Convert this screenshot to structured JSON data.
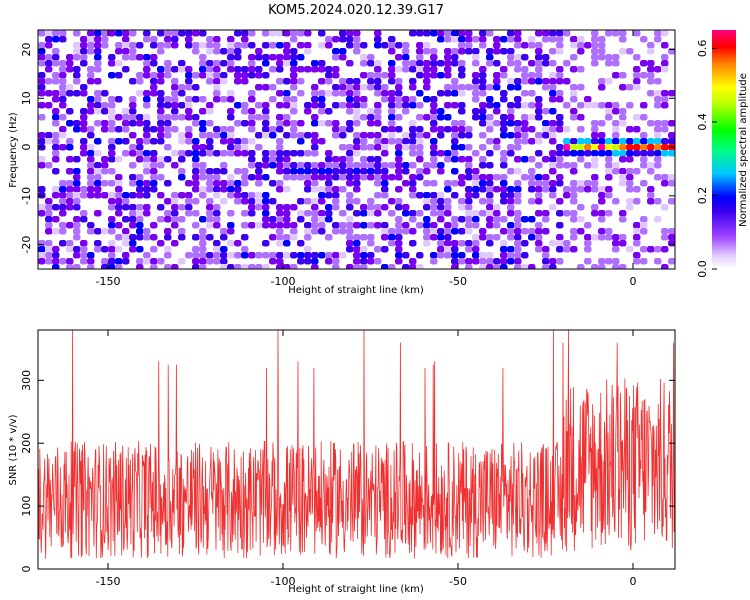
{
  "title": "KOM5.2024.020.12.39.G17",
  "colors": {
    "snr_line": "#f03030",
    "heatmap_palette": [
      "#ffffff",
      "#e0c8ff",
      "#b070ff",
      "#7a00f0",
      "#3b00f0",
      "#0000ff",
      "#00c8ff",
      "#00ffa0",
      "#00ff00",
      "#c8ff00",
      "#ffff00",
      "#ff8000",
      "#ff0000",
      "#ff00a0"
    ]
  },
  "chart_data": [
    {
      "type": "heatmap",
      "xlabel": "Height of straight line (km)",
      "ylabel": "Frequency (Hz)",
      "xlim": [
        -170,
        12
      ],
      "ylim": [
        -25,
        24
      ],
      "xticks": [
        -150,
        -100,
        -50,
        0
      ],
      "yticks": [
        -20,
        -10,
        0,
        10,
        20
      ],
      "colorbar": {
        "label": "Normalized spectral amplitude",
        "range": [
          0,
          0.65
        ],
        "ticks": [
          0.0,
          0.2,
          0.4,
          0.6
        ]
      },
      "signal_track": {
        "description_values": "bright ridge near 0 Hz",
        "segments": [
          {
            "x_start": -20,
            "x_end": 12,
            "freq": 0,
            "peak_amplitude": 0.65
          },
          {
            "x_start": -100,
            "x_end": -70,
            "freq": -5,
            "peak_amplitude": 0.25
          }
        ]
      }
    },
    {
      "type": "line",
      "xlabel": "Height of straight line (km)",
      "ylabel": "SNR (10 * v/v)",
      "xlim": [
        -170,
        12
      ],
      "ylim": [
        0,
        380
      ],
      "xticks": [
        -150,
        -100,
        -50,
        0
      ],
      "yticks": [
        0,
        100,
        200,
        300
      ],
      "series": [
        {
          "x_start": -170,
          "x_end": 12,
          "baseline_mean": 110,
          "tail_mean": 165,
          "peak_values": [
            360,
            320,
            325,
            360,
            330,
            380
          ]
        }
      ]
    }
  ]
}
